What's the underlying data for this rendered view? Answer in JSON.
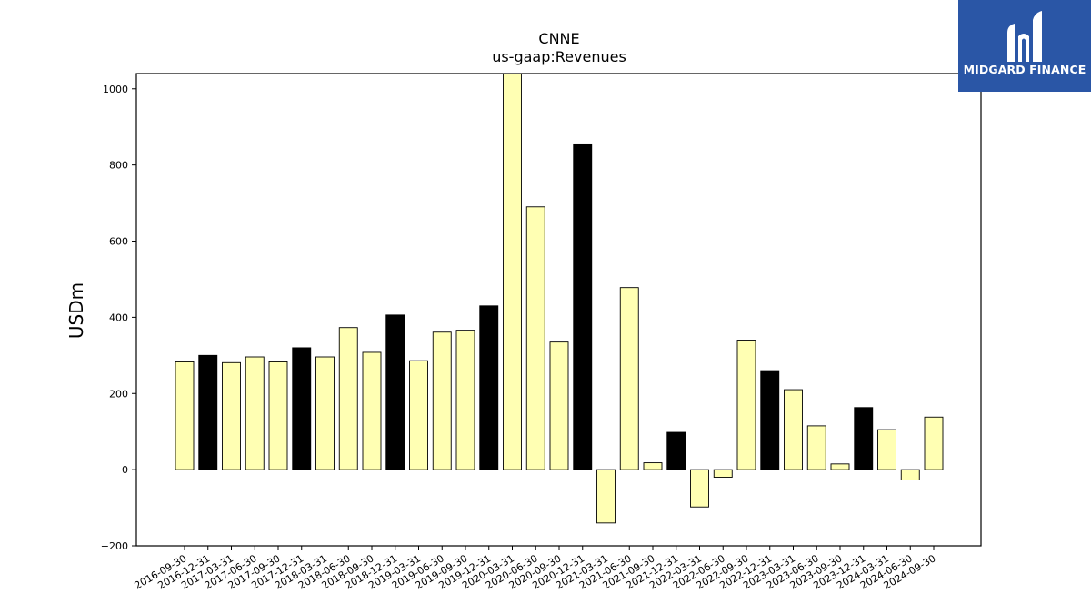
{
  "chart_data": {
    "type": "bar",
    "title": "CNNE",
    "subtitle": "us-gaap:Revenues",
    "ylabel": "USDm",
    "ylim": [
      -200,
      1040
    ],
    "yticks": [
      -200,
      0,
      200,
      400,
      600,
      800,
      1000
    ],
    "grid": false,
    "categories": [
      "2016-09-30",
      "2016-12-31",
      "2017-03-31",
      "2017-06-30",
      "2017-09-30",
      "2017-12-31",
      "2018-03-31",
      "2018-06-30",
      "2018-09-30",
      "2018-12-31",
      "2019-03-31",
      "2019-06-30",
      "2019-09-30",
      "2019-12-31",
      "2020-03-31",
      "2020-06-30",
      "2020-09-30",
      "2020-12-31",
      "2021-03-31",
      "2021-06-30",
      "2021-09-30",
      "2021-12-31",
      "2022-03-31",
      "2022-06-30",
      "2022-09-30",
      "2022-12-31",
      "2023-03-31",
      "2023-06-30",
      "2023-09-30",
      "2023-12-31",
      "2024-03-31",
      "2024-06-30",
      "2024-09-30"
    ],
    "values": [
      283,
      300,
      281,
      296,
      283,
      320,
      296,
      373,
      308,
      406,
      286,
      361,
      366,
      430,
      1045,
      690,
      335,
      853,
      -140,
      478,
      18,
      98,
      -98,
      -20,
      340,
      260,
      210,
      115,
      15,
      163,
      105,
      -27,
      138
    ],
    "colors": {
      "quarter": "#ffffb3",
      "year_end": "#000000",
      "edge": "#000000"
    }
  },
  "logo": {
    "text": "MIDGARD FINANCE",
    "color": "#2a56a6"
  }
}
